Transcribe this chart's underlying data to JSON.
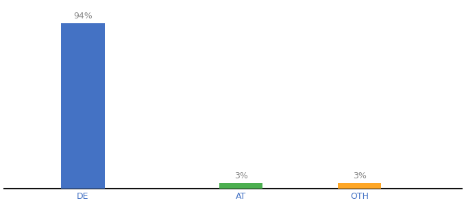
{
  "categories": [
    "DE",
    "AT",
    "OTH"
  ],
  "values": [
    94,
    3,
    3
  ],
  "bar_colors": [
    "#4472c4",
    "#4caf50",
    "#ffa726"
  ],
  "label_color": "#888888",
  "axis_label_color": "#4472c4",
  "ylim": [
    0,
    105
  ],
  "background_color": "#ffffff",
  "bar_label_fontsize": 9,
  "tick_fontsize": 9,
  "bar_width": 0.55,
  "x_positions": [
    1,
    3,
    4.5
  ]
}
